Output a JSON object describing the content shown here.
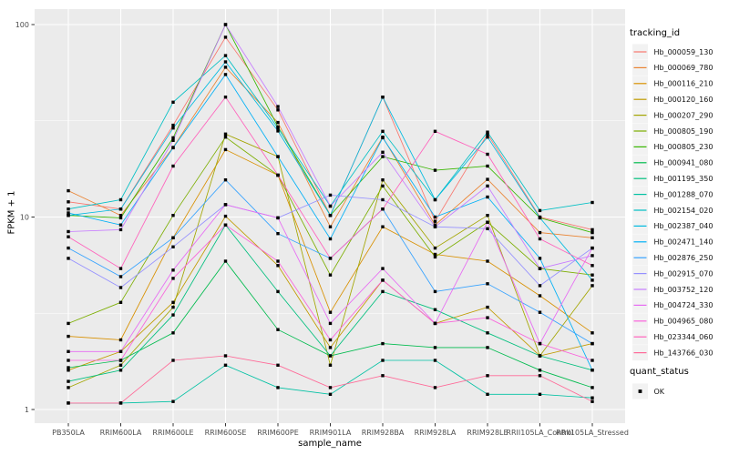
{
  "figure": {
    "background": "#FFFFFF",
    "panel_bg": "#EBEBEB",
    "grid_color": "#FFFFFF",
    "legend_key_bg": "#F2F2F2",
    "tick_text_color": "#4D4D4D",
    "label_text_color": "#111111",
    "point_color": "#000000"
  },
  "chart_data": {
    "type": "line",
    "title": "",
    "xlabel": "sample_name",
    "ylabel": "FPKM + 1",
    "y_scale": "log10",
    "ylim": [
      1,
      110
    ],
    "grid": true,
    "yticks": [
      {
        "value": 1,
        "label": "1"
      },
      {
        "value": 10,
        "label": "10"
      },
      {
        "value": 100,
        "label": "100"
      }
    ],
    "yticks_minor": [
      3.162,
      31.62
    ],
    "categories": [
      "PB350LA",
      "RRIM600LA",
      "RRIM600LE",
      "RRIM600SE",
      "RRIM600PE",
      "RRIM901LA",
      "RRIM928BA",
      "RRIM928LA",
      "RRIM928LE",
      "RRII105LA_Control",
      "RRII105LA_Stressed"
    ],
    "legend": {
      "title": "tracking_id",
      "position": "right"
    },
    "quant_legend": {
      "title": "quant_status",
      "entries": [
        {
          "label": "OK",
          "marker": "black-square"
        }
      ]
    },
    "series": [
      {
        "name": "Hb_000059_130",
        "color": "#F8766D",
        "values": [
          12.0,
          11.0,
          30.0,
          86.0,
          36.0,
          10.2,
          42.0,
          9.5,
          27.0,
          10.0,
          8.6
        ]
      },
      {
        "name": "Hb_000069_780",
        "color": "#EA8331",
        "values": [
          13.7,
          10.2,
          23.0,
          60.0,
          31.0,
          8.9,
          26.0,
          9.1,
          15.7,
          8.3,
          7.8
        ]
      },
      {
        "name": "Hb_000116_210",
        "color": "#D89000",
        "values": [
          2.4,
          2.3,
          7.8,
          22.4,
          16.5,
          3.2,
          8.9,
          6.4,
          5.9,
          3.9,
          2.5
        ]
      },
      {
        "name": "Hb_000120_160",
        "color": "#C09B00",
        "values": [
          1.6,
          2.0,
          3.6,
          10.1,
          5.6,
          2.1,
          4.7,
          2.8,
          3.4,
          1.9,
          2.2
        ]
      },
      {
        "name": "Hb_000207_290",
        "color": "#A3A500",
        "values": [
          1.3,
          1.7,
          3.4,
          27.0,
          20.6,
          1.7,
          15.6,
          6.9,
          10.2,
          1.9,
          4.4
        ]
      },
      {
        "name": "Hb_000805_190",
        "color": "#7CAE00",
        "values": [
          2.8,
          3.6,
          10.2,
          26.0,
          16.5,
          5.0,
          14.5,
          6.2,
          9.4,
          5.4,
          5.0
        ]
      },
      {
        "name": "Hb_000805_230",
        "color": "#39B600",
        "values": [
          10.2,
          9.9,
          25.8,
          100.0,
          29.4,
          10.2,
          20.6,
          17.5,
          18.4,
          9.9,
          8.3
        ]
      },
      {
        "name": "Hb_000941_080",
        "color": "#00BB4E",
        "values": [
          1.65,
          1.8,
          2.5,
          5.9,
          2.6,
          1.9,
          2.2,
          2.1,
          2.1,
          1.6,
          1.3
        ]
      },
      {
        "name": "Hb_001195_350",
        "color": "#00BF7D",
        "values": [
          1.4,
          1.6,
          3.1,
          9.1,
          4.1,
          1.9,
          4.1,
          3.3,
          2.5,
          1.9,
          1.6
        ]
      },
      {
        "name": "Hb_001288_070",
        "color": "#00C1A3",
        "values": [
          1.08,
          1.08,
          1.1,
          1.7,
          1.3,
          1.2,
          1.8,
          1.8,
          1.2,
          1.2,
          1.15
        ]
      },
      {
        "name": "Hb_002154_020",
        "color": "#00BFC4",
        "values": [
          11.0,
          12.3,
          39.5,
          69.0,
          29.0,
          11.4,
          27.9,
          12.3,
          27.6,
          10.8,
          11.9
        ]
      },
      {
        "name": "Hb_002387_040",
        "color": "#00BAE0",
        "values": [
          10.2,
          11.0,
          29.0,
          64.0,
          28.0,
          10.2,
          42.0,
          12.3,
          26.0,
          9.9,
          4.7
        ]
      },
      {
        "name": "Hb_002471_140",
        "color": "#00B0F6",
        "values": [
          10.5,
          9.1,
          22.9,
          55.0,
          20.6,
          7.7,
          25.8,
          10.0,
          12.7,
          6.1,
          1.6
        ]
      },
      {
        "name": "Hb_002876_250",
        "color": "#35A2FF",
        "values": [
          6.9,
          4.9,
          7.8,
          15.6,
          8.2,
          6.1,
          11.0,
          4.1,
          4.5,
          3.2,
          2.2
        ]
      },
      {
        "name": "Hb_002915_070",
        "color": "#9590FF",
        "values": [
          6.1,
          4.3,
          7.0,
          11.6,
          9.9,
          13.0,
          12.3,
          8.9,
          8.7,
          4.4,
          6.9
        ]
      },
      {
        "name": "Hb_003752_120",
        "color": "#C77CFF",
        "values": [
          8.4,
          8.6,
          25.0,
          100.0,
          37.5,
          11.4,
          21.7,
          8.9,
          14.5,
          5.4,
          6.3
        ]
      },
      {
        "name": "Hb_004724_330",
        "color": "#E76BF3",
        "values": [
          2.0,
          2.0,
          5.3,
          11.6,
          9.9,
          2.8,
          5.4,
          2.8,
          9.4,
          2.2,
          6.9
        ]
      },
      {
        "name": "Hb_004965_080",
        "color": "#FA62DB",
        "values": [
          1.8,
          1.8,
          4.8,
          9.1,
          5.9,
          2.3,
          4.7,
          2.8,
          3.0,
          2.2,
          1.8
        ]
      },
      {
        "name": "Hb_023344_060",
        "color": "#FF62BC",
        "values": [
          7.9,
          5.4,
          18.4,
          42.0,
          16.5,
          6.1,
          11.0,
          27.9,
          21.2,
          7.7,
          5.6
        ]
      },
      {
        "name": "Hb_143766_030",
        "color": "#FF6A98",
        "values": [
          1.08,
          1.08,
          1.8,
          1.9,
          1.7,
          1.3,
          1.5,
          1.3,
          1.5,
          1.5,
          1.1
        ]
      }
    ]
  }
}
